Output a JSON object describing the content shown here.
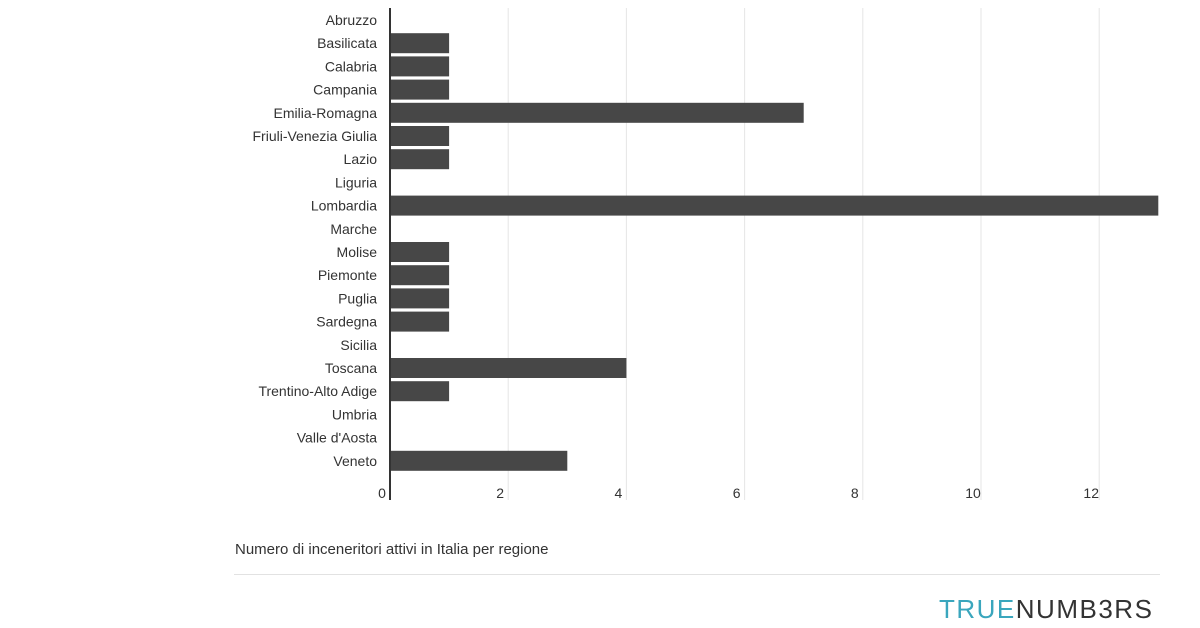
{
  "chart_data": {
    "type": "bar",
    "orientation": "horizontal",
    "title": "",
    "xlabel": "",
    "ylabel": "",
    "categories": [
      "Abruzzo",
      "Basilicata",
      "Calabria",
      "Campania",
      "Emilia-Romagna",
      "Friuli-Venezia Giulia",
      "Lazio",
      "Liguria",
      "Lombardia",
      "Marche",
      "Molise",
      "Piemonte",
      "Puglia",
      "Sardegna",
      "Sicilia",
      "Toscana",
      "Trentino-Alto Adige",
      "Umbria",
      "Valle d'Aosta",
      "Veneto"
    ],
    "values": [
      0,
      1,
      1,
      1,
      7,
      1,
      1,
      0,
      13,
      0,
      1,
      1,
      1,
      1,
      0,
      4,
      1,
      0,
      0,
      3
    ],
    "xlim": [
      0,
      13
    ],
    "xticks": [
      0,
      2,
      4,
      6,
      8,
      10,
      12
    ],
    "grid": true,
    "legend": "none",
    "bar_color": "#474747",
    "grid_color": "#e5e5e5"
  },
  "caption": "Numero di inceneritori attivi in Italia per regione",
  "brand": {
    "part1": "TRUE",
    "part2": "NUMB3RS",
    "color1": "#3aa6bd",
    "color2": "#333333"
  }
}
